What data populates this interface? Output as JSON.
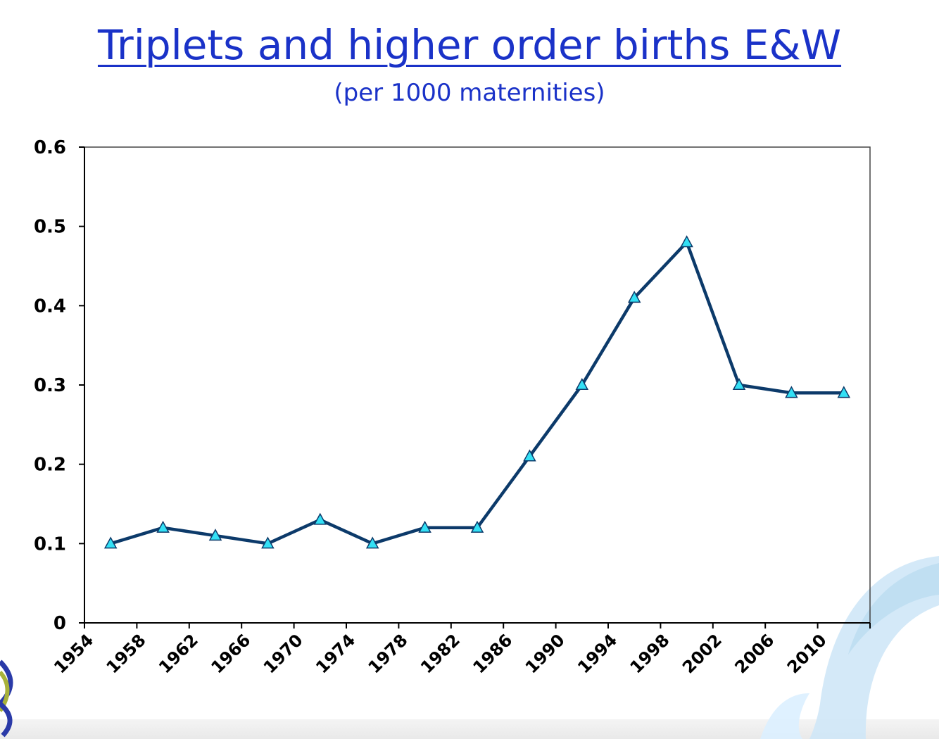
{
  "title": "Triplets and higher order births E&W",
  "subtitle": "(per 1000 maternities)",
  "colors": {
    "title": "#1a32c8",
    "line": "#0c3a6a",
    "marker_fill": "#33e0f5",
    "marker_stroke": "#0c3a6a",
    "axis": "#000000"
  },
  "chart_data": {
    "type": "line",
    "title": "Triplets and higher order births E&W",
    "subtitle": "(per 1000 maternities)",
    "xlabel": "",
    "ylabel": "",
    "x_ticks": [
      "1954",
      "1958",
      "1962",
      "1966",
      "1970",
      "1974",
      "1978",
      "1982",
      "1986",
      "1990",
      "1994",
      "1998",
      "2002",
      "2006",
      "2010"
    ],
    "y_ticks": [
      "0",
      "0.1",
      "0.2",
      "0.3",
      "0.4",
      "0.5",
      "0.6"
    ],
    "xlim": [
      1954,
      2014
    ],
    "ylim": [
      0,
      0.6
    ],
    "grid": false,
    "legend": "none",
    "series": [
      {
        "marker": "triangle",
        "x": [
          1956,
          1960,
          1964,
          1968,
          1972,
          1976,
          1980,
          1984,
          1988,
          1992,
          1996,
          2000,
          2004,
          2008,
          2012
        ],
        "values": [
          0.1,
          0.12,
          0.11,
          0.1,
          0.13,
          0.1,
          0.12,
          0.12,
          0.21,
          0.3,
          0.41,
          0.48,
          0.3,
          0.29,
          0.29
        ]
      }
    ]
  }
}
